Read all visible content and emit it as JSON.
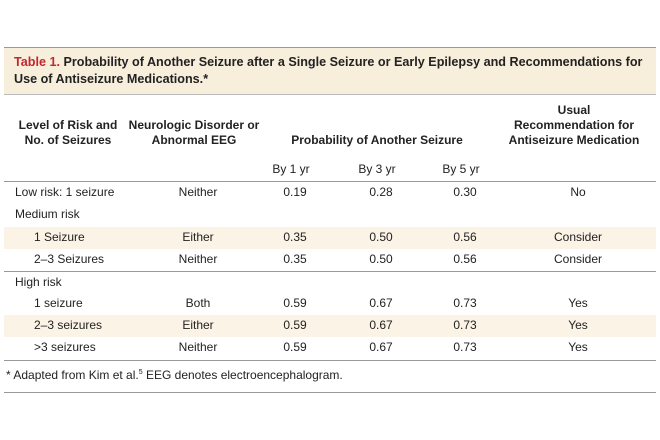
{
  "table": {
    "label": "Table 1.",
    "title": "Probability of Another Seizure after a Single Seizure or Early Epilepsy and Recommendations for Use of Antiseizure Medications.",
    "title_marker": "*",
    "headers": {
      "risk": "Level of Risk and No. of Seizures",
      "neuro": "Neurologic Disorder or Abnormal EEG",
      "prob": "Probability of Another Seizure",
      "rec": "Usual Recommendation for Antiseizure Medication"
    },
    "subheaders": [
      "By 1 yr",
      "By 3 yr",
      "By 5 yr"
    ],
    "rows": [
      {
        "risk": "Low risk: 1 seizure",
        "neuro": "Neither",
        "y1": "0.19",
        "y3": "0.28",
        "y5": "0.30",
        "rec": "No"
      },
      {
        "risk": "Medium risk",
        "neuro": "",
        "y1": "",
        "y3": "",
        "y5": "",
        "rec": ""
      },
      {
        "risk": "1 Seizure",
        "neuro": "Either",
        "y1": "0.35",
        "y3": "0.50",
        "y5": "0.56",
        "rec": "Consider"
      },
      {
        "risk": "2–3 Seizures",
        "neuro": "Neither",
        "y1": "0.35",
        "y3": "0.50",
        "y5": "0.56",
        "rec": "Consider"
      },
      {
        "risk": "High risk",
        "neuro": "",
        "y1": "",
        "y3": "",
        "y5": "",
        "rec": ""
      },
      {
        "risk": "1 seizure",
        "neuro": "Both",
        "y1": "0.59",
        "y3": "0.67",
        "y5": "0.73",
        "rec": "Yes"
      },
      {
        "risk": "2–3 seizures",
        "neuro": "Either",
        "y1": "0.59",
        "y3": "0.67",
        "y5": "0.73",
        "rec": "Yes"
      },
      {
        "risk": ">3 seizures",
        "neuro": "Neither",
        "y1": "0.59",
        "y3": "0.67",
        "y5": "0.73",
        "rec": "Yes"
      }
    ],
    "footnote_marker": "*",
    "footnote_text": " Adapted from Kim et al.",
    "footnote_ref": "5",
    "footnote_rest": " EEG denotes electroencephalogram."
  }
}
